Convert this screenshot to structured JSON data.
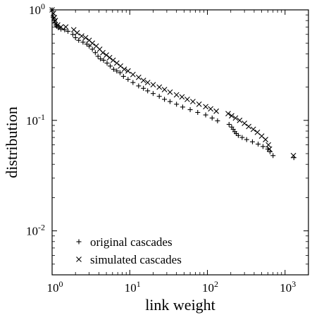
{
  "chart_data": {
    "type": "scatter",
    "xlabel": "link weight",
    "ylabel": "distribution",
    "xscale": "log",
    "yscale": "log",
    "xlim": [
      1,
      2000
    ],
    "ylim": [
      0.004,
      1
    ],
    "x_ticks": [
      {
        "value": 1,
        "base": "10",
        "exp": "0"
      },
      {
        "value": 10,
        "base": "10",
        "exp": "1"
      },
      {
        "value": 100,
        "base": "10",
        "exp": "2"
      },
      {
        "value": 1000,
        "base": "10",
        "exp": "3"
      }
    ],
    "y_ticks": [
      {
        "value": 1,
        "base": "10",
        "exp": "0"
      },
      {
        "value": 0.1,
        "base": "10",
        "exp": "-1"
      },
      {
        "value": 0.01,
        "base": "10",
        "exp": "-2"
      }
    ],
    "legend_position": "bottom-left",
    "grid": false,
    "series": [
      {
        "name": "original cascades",
        "marker": "+",
        "color": "#000000",
        "points": [
          [
            1.0,
            1.0
          ],
          [
            1.03,
            0.86
          ],
          [
            1.06,
            0.8
          ],
          [
            1.09,
            0.76
          ],
          [
            1.12,
            0.73
          ],
          [
            1.15,
            0.71
          ],
          [
            1.2,
            0.69
          ],
          [
            1.3,
            0.67
          ],
          [
            1.45,
            0.66
          ],
          [
            1.6,
            0.64
          ],
          [
            1.85,
            0.6
          ],
          [
            2.0,
            0.56
          ],
          [
            2.2,
            0.53
          ],
          [
            2.5,
            0.51
          ],
          [
            2.8,
            0.49
          ],
          [
            3.0,
            0.47
          ],
          [
            3.3,
            0.44
          ],
          [
            3.6,
            0.41
          ],
          [
            3.9,
            0.38
          ],
          [
            4.2,
            0.36
          ],
          [
            4.6,
            0.35
          ],
          [
            5.1,
            0.33
          ],
          [
            5.6,
            0.31
          ],
          [
            6.2,
            0.29
          ],
          [
            6.8,
            0.28
          ],
          [
            7.5,
            0.27
          ],
          [
            8.3,
            0.25
          ],
          [
            9.5,
            0.235
          ],
          [
            11,
            0.22
          ],
          [
            13,
            0.205
          ],
          [
            15,
            0.195
          ],
          [
            17,
            0.185
          ],
          [
            20,
            0.175
          ],
          [
            24,
            0.165
          ],
          [
            28,
            0.155
          ],
          [
            33,
            0.148
          ],
          [
            40,
            0.14
          ],
          [
            48,
            0.132
          ],
          [
            60,
            0.125
          ],
          [
            75,
            0.118
          ],
          [
            95,
            0.112
          ],
          [
            115,
            0.105
          ],
          [
            135,
            0.099
          ],
          [
            190,
            0.092
          ],
          [
            205,
            0.087
          ],
          [
            215,
            0.083
          ],
          [
            225,
            0.079
          ],
          [
            235,
            0.076
          ],
          [
            250,
            0.073
          ],
          [
            280,
            0.07
          ],
          [
            320,
            0.067
          ],
          [
            380,
            0.064
          ],
          [
            450,
            0.061
          ],
          [
            520,
            0.058
          ],
          [
            600,
            0.055
          ],
          [
            640,
            0.052
          ],
          [
            700,
            0.048
          ],
          [
            1300,
            0.046
          ]
        ]
      },
      {
        "name": "simulated cascades",
        "marker": "x",
        "color": "#000000",
        "points": [
          [
            1.0,
            1.0
          ],
          [
            1.04,
            0.93
          ],
          [
            1.07,
            0.85
          ],
          [
            1.1,
            0.8
          ],
          [
            1.18,
            0.73
          ],
          [
            1.3,
            0.7
          ],
          [
            1.5,
            0.7
          ],
          [
            1.9,
            0.66
          ],
          [
            2.1,
            0.62
          ],
          [
            2.4,
            0.58
          ],
          [
            2.7,
            0.56
          ],
          [
            3.0,
            0.53
          ],
          [
            3.3,
            0.5
          ],
          [
            3.7,
            0.47
          ],
          [
            4.1,
            0.44
          ],
          [
            4.5,
            0.41
          ],
          [
            5.0,
            0.39
          ],
          [
            5.5,
            0.37
          ],
          [
            6.1,
            0.35
          ],
          [
            6.8,
            0.33
          ],
          [
            7.6,
            0.31
          ],
          [
            8.5,
            0.29
          ],
          [
            9.5,
            0.28
          ],
          [
            11,
            0.26
          ],
          [
            13,
            0.245
          ],
          [
            15,
            0.23
          ],
          [
            17,
            0.22
          ],
          [
            20,
            0.21
          ],
          [
            24,
            0.2
          ],
          [
            28,
            0.19
          ],
          [
            33,
            0.18
          ],
          [
            40,
            0.17
          ],
          [
            47,
            0.163
          ],
          [
            55,
            0.155
          ],
          [
            65,
            0.148
          ],
          [
            78,
            0.14
          ],
          [
            95,
            0.133
          ],
          [
            110,
            0.127
          ],
          [
            130,
            0.121
          ],
          [
            185,
            0.115
          ],
          [
            205,
            0.11
          ],
          [
            230,
            0.105
          ],
          [
            260,
            0.1
          ],
          [
            300,
            0.094
          ],
          [
            340,
            0.088
          ],
          [
            390,
            0.083
          ],
          [
            440,
            0.078
          ],
          [
            500,
            0.072
          ],
          [
            560,
            0.067
          ],
          [
            610,
            0.06
          ],
          [
            630,
            0.055
          ],
          [
            1280,
            0.048
          ]
        ]
      }
    ]
  }
}
